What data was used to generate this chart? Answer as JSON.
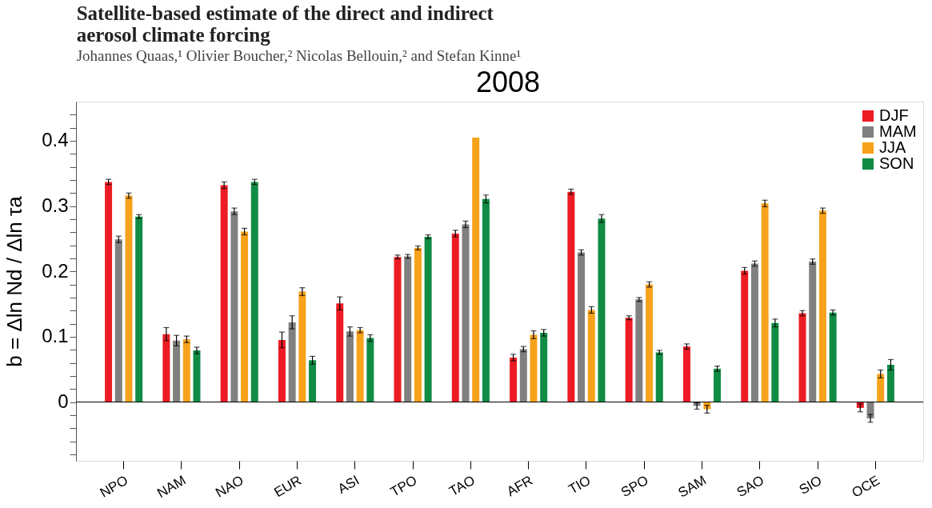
{
  "chart_data": {
    "type": "bar",
    "title": [
      "Satellite-based estimate of the direct and indirect",
      "aerosol climate forcing"
    ],
    "subtitle": "Johannes Quaas,¹ Olivier Boucher,² Nicolas Bellouin,² and Stefan Kinne¹",
    "ylabel": "b = Δln Nd / Δln τa",
    "annotations": [
      "2008"
    ],
    "categories": [
      "NPO",
      "NAM",
      "NAO",
      "EUR",
      "ASI",
      "TPO",
      "TAO",
      "AFR",
      "TIO",
      "SPO",
      "SAM",
      "SAO",
      "SIO",
      "OCE"
    ],
    "series": [
      {
        "name": "DJF",
        "color": "#ed1c24",
        "values": [
          0.337,
          0.104,
          0.332,
          0.095,
          0.151,
          0.222,
          0.258,
          0.068,
          0.322,
          0.129,
          0.085,
          0.201,
          0.136,
          -0.009
        ],
        "errors": [
          0.004,
          0.01,
          0.005,
          0.012,
          0.01,
          0.003,
          0.005,
          0.005,
          0.004,
          0.003,
          0.004,
          0.005,
          0.004,
          0.006
        ]
      },
      {
        "name": "MAM",
        "color": "#808080",
        "values": [
          0.249,
          0.094,
          0.292,
          0.122,
          0.108,
          0.223,
          0.272,
          0.081,
          0.229,
          0.157,
          -0.006,
          0.212,
          0.215,
          -0.025
        ],
        "errors": [
          0.005,
          0.008,
          0.005,
          0.01,
          0.007,
          0.003,
          0.005,
          0.004,
          0.004,
          0.003,
          0.005,
          0.004,
          0.004,
          0.006
        ]
      },
      {
        "name": "JJA",
        "color": "#f7a21b",
        "values": [
          0.316,
          0.096,
          0.261,
          0.169,
          0.11,
          0.236,
          0.405,
          0.103,
          0.141,
          0.18,
          -0.011,
          0.304,
          0.293,
          0.043
        ],
        "errors": [
          0.004,
          0.005,
          0.005,
          0.006,
          0.004,
          0.003,
          null,
          0.006,
          0.005,
          0.004,
          0.006,
          0.005,
          0.004,
          0.006
        ]
      },
      {
        "name": "SON",
        "color": "#108c44",
        "values": [
          0.284,
          0.079,
          0.337,
          0.064,
          0.098,
          0.253,
          0.311,
          0.106,
          0.281,
          0.076,
          0.051,
          0.121,
          0.137,
          0.057
        ],
        "errors": [
          0.003,
          0.005,
          0.004,
          0.006,
          0.005,
          0.003,
          0.006,
          0.005,
          0.006,
          0.003,
          0.004,
          0.006,
          0.004,
          0.008
        ]
      }
    ],
    "ylim": [
      -0.09,
      0.46
    ],
    "yticks": [
      {
        "value": -0.08,
        "label": null
      },
      {
        "value": -0.06,
        "label": null
      },
      {
        "value": -0.04,
        "label": null
      },
      {
        "value": -0.02,
        "label": null
      },
      0,
      {
        "value": 0.02,
        "label": null
      },
      {
        "value": 0.04,
        "label": null
      },
      {
        "value": 0.06,
        "label": null
      },
      {
        "value": 0.08,
        "label": null
      },
      0.1,
      {
        "value": 0.12,
        "label": null
      },
      {
        "value": 0.14,
        "label": null
      },
      {
        "value": 0.16,
        "label": null
      },
      {
        "value": 0.18,
        "label": null
      },
      0.2,
      {
        "value": 0.22,
        "label": null
      },
      {
        "value": 0.24,
        "label": null
      },
      {
        "value": 0.26,
        "label": null
      },
      {
        "value": 0.28,
        "label": null
      },
      0.3,
      {
        "value": 0.32,
        "label": null
      },
      {
        "value": 0.34,
        "label": null
      },
      {
        "value": 0.36,
        "label": null
      },
      {
        "value": 0.38,
        "label": null
      },
      0.4,
      {
        "value": 0.42,
        "label": null
      },
      {
        "value": 0.44,
        "label": null
      }
    ],
    "ref_lines": [
      {
        "axis": "y",
        "value": 0,
        "color": "#000000"
      }
    ],
    "grid": false,
    "legend": "top right"
  }
}
